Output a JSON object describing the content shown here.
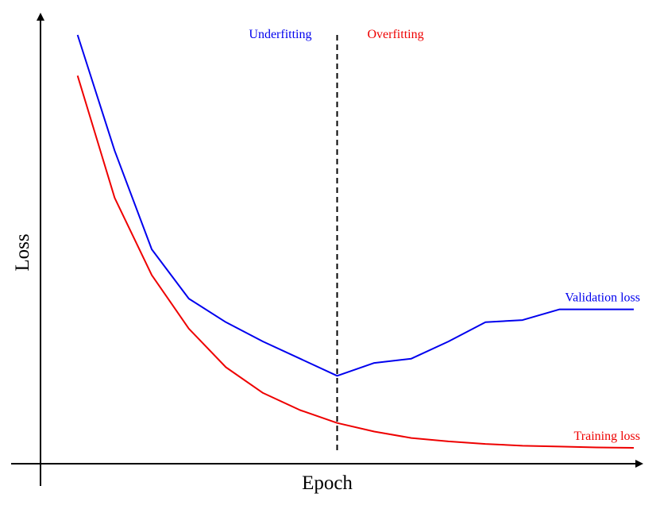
{
  "chart_data": {
    "type": "line",
    "title": "",
    "xlabel": "Epoch",
    "ylabel": "Loss",
    "x": [
      1,
      2,
      3,
      4,
      5,
      6,
      7,
      8,
      9,
      10,
      11,
      12,
      13,
      14,
      15,
      16
    ],
    "xlim": [
      0,
      16.6
    ],
    "ylim": [
      0,
      1.0
    ],
    "grid": false,
    "legend": "none",
    "series": [
      {
        "name": "Validation loss",
        "color": "#0000ee",
        "values": [
          1.0,
          0.73,
          0.5,
          0.385,
          0.33,
          0.285,
          0.245,
          0.205,
          0.235,
          0.245,
          0.285,
          0.33,
          0.335,
          0.36,
          0.36,
          0.36
        ]
      },
      {
        "name": "Training loss",
        "color": "#ee0000",
        "values": [
          0.905,
          0.62,
          0.44,
          0.315,
          0.225,
          0.165,
          0.125,
          0.095,
          0.075,
          0.06,
          0.052,
          0.046,
          0.042,
          0.04,
          0.038,
          0.037
        ]
      }
    ],
    "divider": {
      "x": 8,
      "left_label": "Underfitting",
      "right_label": "Overfitting",
      "left_color": "#0000ee",
      "right_color": "#ee0000"
    }
  }
}
